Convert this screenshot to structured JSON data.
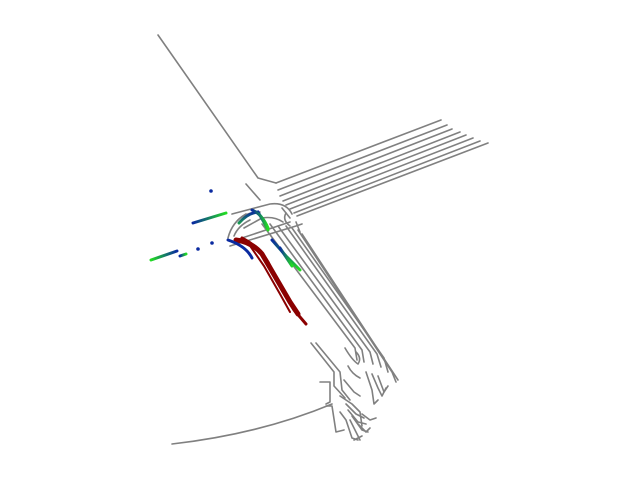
{
  "map": {
    "type": "driving-scene-map",
    "colors": {
      "background": "#ffffff",
      "road_lines": "#808080",
      "ego_trajectory": "#8b0000",
      "agent_past": "#0a2aa0",
      "agent_future": "#22dd22"
    },
    "layers": [
      "road-lane-lines",
      "ego-trajectory",
      "agent-trajectories"
    ]
  }
}
